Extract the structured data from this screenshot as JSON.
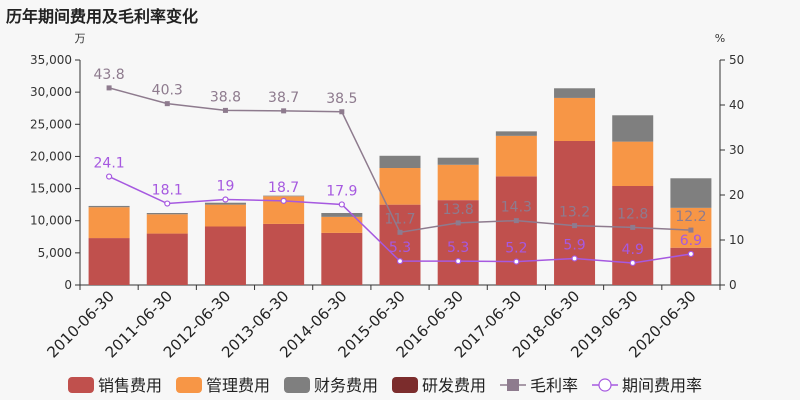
{
  "chart_data": {
    "type": "bar",
    "title": "历年期间费用及毛利率变化",
    "left_unit": "万",
    "right_unit": "%",
    "categories": [
      "2010-06-30",
      "2011-06-30",
      "2012-06-30",
      "2013-06-30",
      "2014-06-30",
      "2015-06-30",
      "2016-06-30",
      "2017-06-30",
      "2018-06-30",
      "2019-06-30",
      "2020-06-30"
    ],
    "left_axis": {
      "min": 0,
      "max": 35000,
      "ticks": [
        0,
        5000,
        10000,
        15000,
        20000,
        25000,
        30000,
        35000
      ],
      "tick_labels": [
        "0",
        "5,000",
        "10,000",
        "15,000",
        "20,000",
        "25,000",
        "30,000",
        "35,000"
      ]
    },
    "right_axis": {
      "min": 0,
      "max": 50,
      "ticks": [
        0,
        10,
        20,
        30,
        40,
        50
      ]
    },
    "grid": false,
    "legend_position": "bottom",
    "bar_series": [
      {
        "name": "销售费用",
        "color": "#c0504d",
        "values": [
          7300,
          8000,
          9100,
          9500,
          8100,
          12500,
          13200,
          16900,
          22400,
          15400,
          5800
        ]
      },
      {
        "name": "管理费用",
        "color": "#f79646",
        "values": [
          4800,
          3000,
          3400,
          4300,
          2500,
          5700,
          5500,
          6300,
          6700,
          6900,
          6200
        ]
      },
      {
        "name": "财务费用",
        "color": "#7f7f7f",
        "values": [
          200,
          200,
          300,
          100,
          600,
          1900,
          1100,
          700,
          1500,
          4100,
          4600
        ]
      },
      {
        "name": "研发费用",
        "color": "#7b2c2c",
        "values": [
          0,
          0,
          0,
          0,
          0,
          0,
          0,
          0,
          0,
          0,
          0
        ]
      }
    ],
    "line_series": [
      {
        "name": "毛利率",
        "color": "#8e7b8e",
        "marker": "square",
        "values": [
          43.8,
          40.3,
          38.8,
          38.7,
          38.5,
          11.7,
          13.8,
          14.3,
          13.2,
          12.8,
          12.2
        ],
        "labels": [
          "43.8",
          "40.3",
          "38.8",
          "38.7",
          "38.5",
          "11.7",
          "13.8",
          "14.3",
          "13.2",
          "12.8",
          "12.2"
        ]
      },
      {
        "name": "期间费用率",
        "color": "#a659e0",
        "marker": "circle",
        "values": [
          24.1,
          18.1,
          19,
          18.7,
          17.9,
          5.3,
          5.3,
          5.2,
          5.9,
          4.9,
          6.9
        ],
        "labels": [
          "24.1",
          "18.1",
          "19",
          "18.7",
          "17.9",
          "5.3",
          "5.3",
          "5.2",
          "5.9",
          "4.9",
          "6.9"
        ]
      }
    ]
  }
}
